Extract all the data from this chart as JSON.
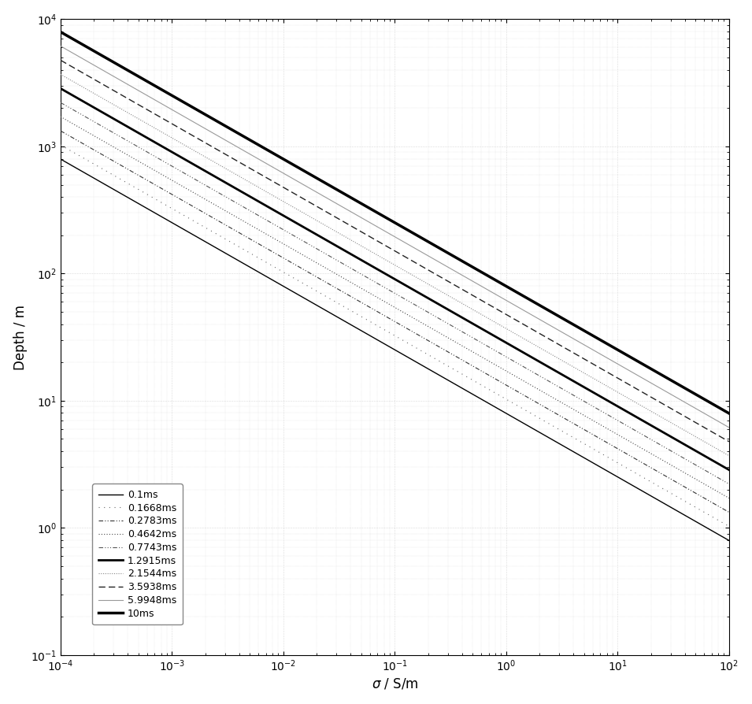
{
  "times_ms": [
    0.1,
    0.1668,
    0.2783,
    0.4642,
    0.7743,
    1.2915,
    2.1544,
    3.5938,
    5.9948,
    10.0
  ],
  "labels": [
    "0.1ms",
    "0.1668ms",
    "0.2783ms",
    "0.4642ms",
    "0.7743ms",
    "1.2915ms",
    "2.1544ms",
    "3.5938ms",
    "5.9948ms",
    "10ms"
  ],
  "sigma_range": [
    0.0001,
    100.0
  ],
  "depth_range": [
    0.1,
    10000.0
  ],
  "xlabel": "$\\sigma$ / S/m",
  "ylabel": "Depth / m",
  "background_color": "#ffffff",
  "sigma_points": 500,
  "mu0": 1.2566370614359173e-06
}
